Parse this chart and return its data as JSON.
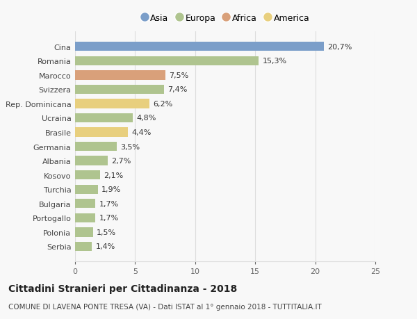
{
  "categories": [
    "Cina",
    "Romania",
    "Marocco",
    "Svizzera",
    "Rep. Dominicana",
    "Ucraina",
    "Brasile",
    "Germania",
    "Albania",
    "Kosovo",
    "Turchia",
    "Bulgaria",
    "Portogallo",
    "Polonia",
    "Serbia"
  ],
  "values": [
    20.7,
    15.3,
    7.5,
    7.4,
    6.2,
    4.8,
    4.4,
    3.5,
    2.7,
    2.1,
    1.9,
    1.7,
    1.7,
    1.5,
    1.4
  ],
  "labels": [
    "20,7%",
    "15,3%",
    "7,5%",
    "7,4%",
    "6,2%",
    "4,8%",
    "4,4%",
    "3,5%",
    "2,7%",
    "2,1%",
    "1,9%",
    "1,7%",
    "1,7%",
    "1,5%",
    "1,4%"
  ],
  "colors": [
    "#7b9ec9",
    "#afc48f",
    "#d9a07a",
    "#afc48f",
    "#e8cf7e",
    "#afc48f",
    "#e8cf7e",
    "#afc48f",
    "#afc48f",
    "#afc48f",
    "#afc48f",
    "#afc48f",
    "#afc48f",
    "#afc48f",
    "#afc48f"
  ],
  "legend_labels": [
    "Asia",
    "Europa",
    "Africa",
    "America"
  ],
  "legend_colors": [
    "#7b9ec9",
    "#afc48f",
    "#d9a07a",
    "#e8cf7e"
  ],
  "title": "Cittadini Stranieri per Cittadinanza - 2018",
  "subtitle": "COMUNE DI LAVENA PONTE TRESA (VA) - Dati ISTAT al 1° gennaio 2018 - TUTTITALIA.IT",
  "xlim": [
    0,
    25
  ],
  "xticks": [
    0,
    5,
    10,
    15,
    20,
    25
  ],
  "background_color": "#f8f8f8",
  "grid_color": "#dddddd",
  "label_fontsize": 8,
  "tick_fontsize": 8,
  "legend_fontsize": 9
}
